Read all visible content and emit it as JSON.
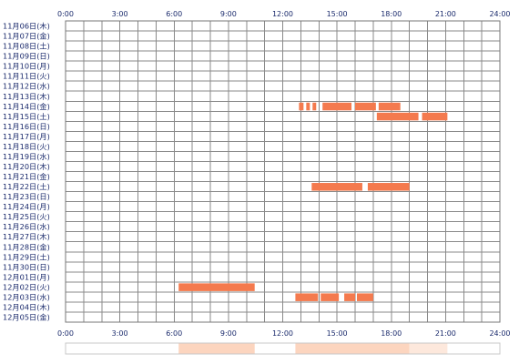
{
  "colors": {
    "grid": "#8a8a8a",
    "frame": "#777777",
    "label": "#1a2a6c",
    "bar": "#f47a4e",
    "density_strong": "#fcd5bf",
    "density_light": "#fde8dc",
    "density_frame": "#c8c8c8"
  },
  "chart_data": {
    "type": "timeline",
    "x_ticks": [
      "0:00",
      "3:00",
      "6:00",
      "9:00",
      "12:00",
      "15:00",
      "18:00",
      "21:00",
      "24:00"
    ],
    "rows": [
      "11月06日(木)",
      "11月07日(金)",
      "11月08日(土)",
      "11月09日(日)",
      "11月10日(月)",
      "11月11日(火)",
      "11月12日(水)",
      "11月13日(木)",
      "11月14日(金)",
      "11月15日(土)",
      "11月16日(日)",
      "11月17日(月)",
      "11月18日(火)",
      "11月19日(水)",
      "11月20日(木)",
      "11月21日(金)",
      "11月22日(土)",
      "11月23日(日)",
      "11月24日(月)",
      "11月25日(火)",
      "11月26日(水)",
      "11月27日(木)",
      "11月28日(金)",
      "11月29日(土)",
      "11月30日(日)",
      "12月01日(月)",
      "12月02日(火)",
      "12月03日(水)",
      "12月04日(木)",
      "12月05日(金)"
    ],
    "segments": [
      {
        "row": 8,
        "start": 12.9,
        "end": 13.15
      },
      {
        "row": 8,
        "start": 13.3,
        "end": 13.5
      },
      {
        "row": 8,
        "start": 13.65,
        "end": 13.85
      },
      {
        "row": 8,
        "start": 14.2,
        "end": 15.8
      },
      {
        "row": 8,
        "start": 16.0,
        "end": 17.15
      },
      {
        "row": 8,
        "start": 17.3,
        "end": 18.5
      },
      {
        "row": 9,
        "start": 17.2,
        "end": 19.5
      },
      {
        "row": 9,
        "start": 19.7,
        "end": 21.1
      },
      {
        "row": 16,
        "start": 13.6,
        "end": 16.4
      },
      {
        "row": 16,
        "start": 16.7,
        "end": 19.0
      },
      {
        "row": 26,
        "start": 6.25,
        "end": 10.45
      },
      {
        "row": 27,
        "start": 12.7,
        "end": 13.95
      },
      {
        "row": 27,
        "start": 14.1,
        "end": 15.1
      },
      {
        "row": 27,
        "start": 15.4,
        "end": 16.0
      },
      {
        "row": 27,
        "start": 16.1,
        "end": 17.0
      }
    ],
    "density": [
      {
        "start": 6.25,
        "end": 10.45,
        "level": "strong"
      },
      {
        "start": 12.7,
        "end": 19.0,
        "level": "strong"
      },
      {
        "start": 19.0,
        "end": 21.1,
        "level": "light"
      }
    ],
    "x_range": [
      0,
      24
    ]
  }
}
